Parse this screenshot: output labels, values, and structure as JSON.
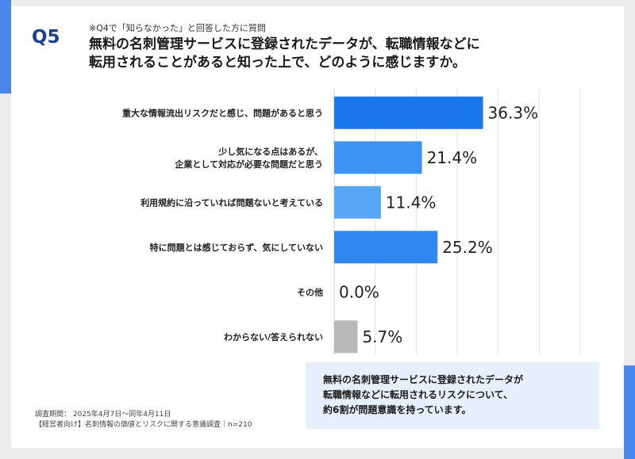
{
  "header": {
    "q_number": "Q5",
    "prequestion": "※Q4で「知らなかった」と回答した方に質問",
    "question_line1": "無料の名刺管理サービスに登録されたデータが、転職情報などに",
    "question_line2": "転用されることがあると知った上で、どのように感じますか。"
  },
  "chart_data": {
    "type": "bar",
    "orientation": "horizontal",
    "unit": "%",
    "categories": [
      [
        "重大な情報流出リスクだと感じ、問題があると思う"
      ],
      [
        "少し気になる点はあるが、",
        "企業として対応が必要な問題だと思う"
      ],
      [
        "利用規約に沿っていれば問題ないと考えている"
      ],
      [
        "特に問題とは感じておらず、気にしていない"
      ],
      [
        "その他"
      ],
      [
        "わからない/答えられない"
      ]
    ],
    "values": [
      36.3,
      21.4,
      11.4,
      25.2,
      0.0,
      5.7
    ],
    "value_labels": [
      "36.3%",
      "21.4%",
      "11.4%",
      "25.2%",
      "0.0%",
      "5.7%"
    ],
    "colors": [
      "#1a78ec",
      "#3e92f2",
      "#5aa6f6",
      "#2f88f0",
      "#1a78ec",
      "#b8b8b8"
    ],
    "xlim": [
      0,
      60
    ],
    "grid": true
  },
  "callout": {
    "line1": "無料の名刺管理サービスに登録されたデータが",
    "line2": "転職情報などに転用されるリスクについて、",
    "line3": "約6割が問題意識を持っています。"
  },
  "footer": {
    "period": "調査期間： 2025年4月7日〜同年4月11日",
    "survey": "【経営者向け】名刺情報の価値とリスクに関する意識調査｜n=210"
  },
  "colors": {
    "accent": "#4a86ec",
    "q_label": "#1b3f8c",
    "callout_bg": "#e6effb"
  }
}
